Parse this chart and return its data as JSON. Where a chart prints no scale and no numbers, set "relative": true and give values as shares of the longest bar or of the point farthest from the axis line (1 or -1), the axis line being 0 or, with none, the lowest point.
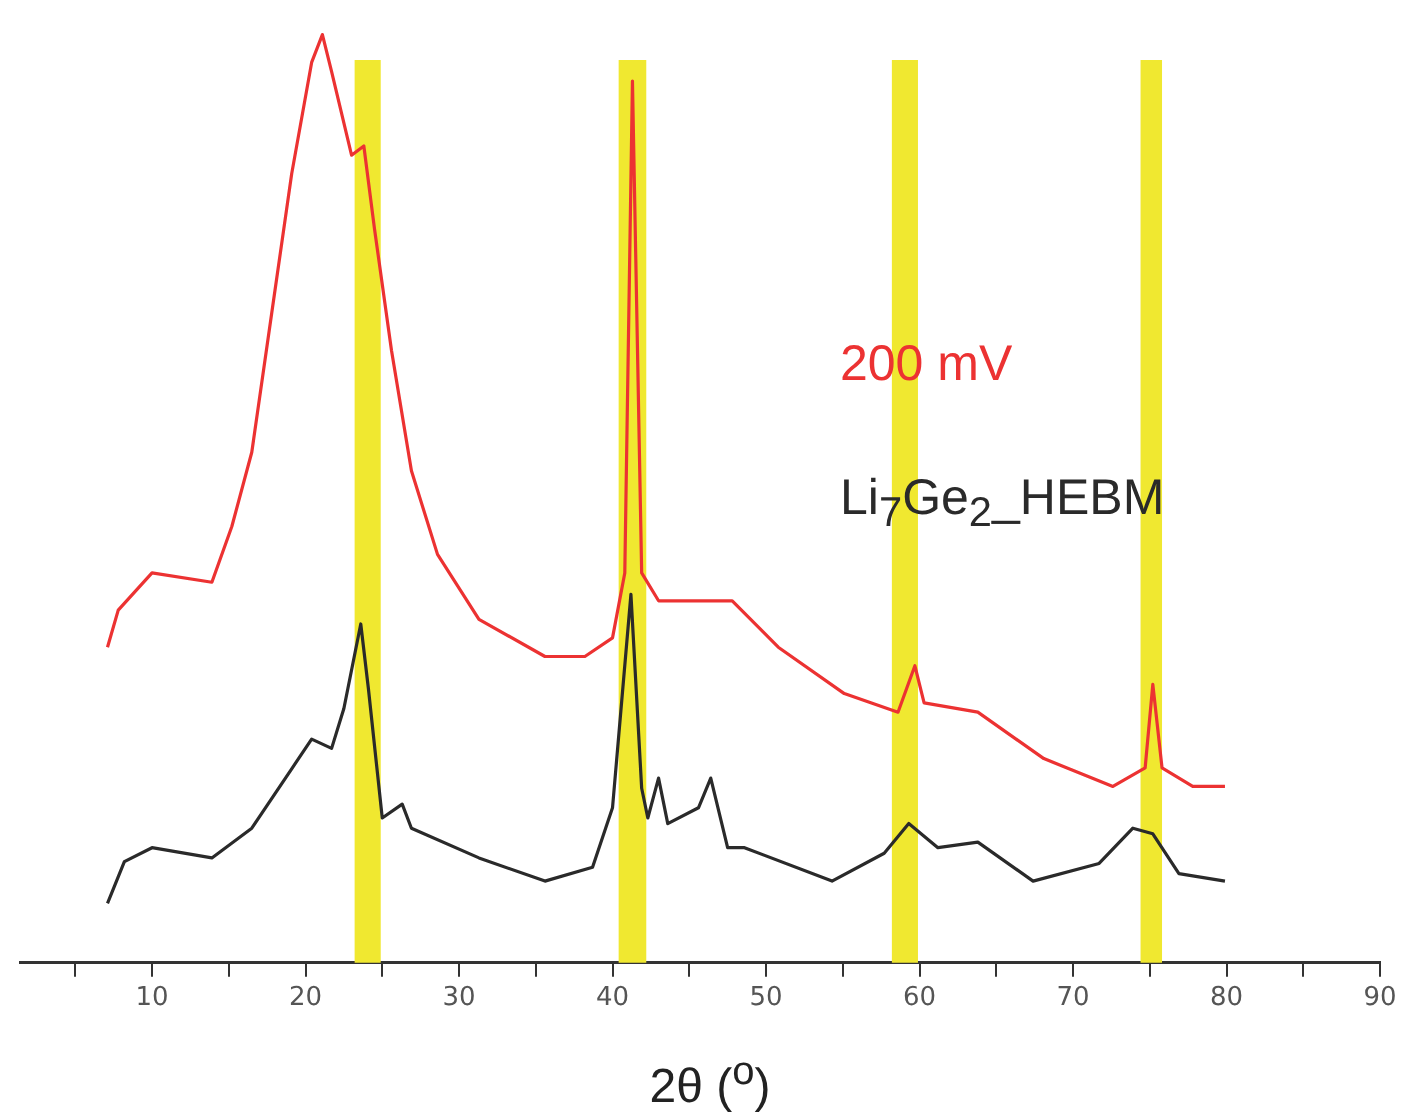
{
  "chart_data": {
    "type": "line",
    "relative": true,
    "xlabel": "2θ ($^{o}$)",
    "xlim": [
      1.4,
      90
    ],
    "xticks": [
      {
        "value": 5,
        "label": null
      },
      10,
      {
        "value": 15,
        "label": null
      },
      20,
      {
        "value": 25,
        "label": null
      },
      30,
      {
        "value": 35,
        "label": null
      },
      40,
      {
        "value": 45,
        "label": null
      },
      50,
      {
        "value": 55,
        "label": null
      },
      60,
      {
        "value": 65,
        "label": null
      },
      70,
      {
        "value": 75,
        "label": null
      },
      80,
      {
        "value": 85,
        "label": null
      },
      90
    ],
    "grid": false,
    "marker": "none",
    "line_style": "solid",
    "bands": [
      {
        "axis": "x",
        "from": 23.2,
        "to": 24.9,
        "color": "#f0e830"
      },
      {
        "axis": "x",
        "from": 40.4,
        "to": 42.2,
        "color": "#f0e830"
      },
      {
        "axis": "x",
        "from": 58.2,
        "to": 59.9,
        "color": "#f0e830"
      },
      {
        "axis": "x",
        "from": 74.4,
        "to": 75.8,
        "color": "#f0e830"
      }
    ],
    "series": [
      {
        "name": "200 mV",
        "color": "#ec3232",
        "x": [
          7.1,
          7.8,
          10,
          13.9,
          15.2,
          16.5,
          17.8,
          19.1,
          20.4,
          21.1,
          21.7,
          23.0,
          23.8,
          24.5,
          25.6,
          26.9,
          28.6,
          31.3,
          35.6,
          38.2,
          40,
          40.8,
          41.3,
          41.9,
          43,
          43.4,
          47.8,
          50.8,
          55.1,
          58.6,
          59.7,
          60.3,
          63.8,
          68.1,
          72.6,
          74.7,
          75.2,
          75.8,
          77.8,
          79.9
        ],
        "values": [
          0.34,
          0.38,
          0.42,
          0.41,
          0.47,
          0.55,
          0.7,
          0.85,
          0.97,
          1.0,
          0.96,
          0.87,
          0.88,
          0.79,
          0.66,
          0.53,
          0.44,
          0.37,
          0.33,
          0.33,
          0.35,
          0.42,
          0.95,
          0.42,
          0.39,
          0.39,
          0.39,
          0.34,
          0.29,
          0.27,
          0.32,
          0.28,
          0.27,
          0.22,
          0.19,
          0.21,
          0.3,
          0.21,
          0.19,
          0.19
        ]
      },
      {
        "name": "Li$_{7}$Ge$_{2}$_HEBM",
        "color": "#2a2a2a",
        "x": [
          7.1,
          8.2,
          10,
          13.9,
          16.5,
          19.1,
          20.4,
          21.7,
          22.5,
          23.6,
          24.1,
          25,
          26.3,
          26.9,
          31.3,
          35.6,
          38.7,
          40,
          41.2,
          41.9,
          42.3,
          43,
          43.6,
          45.6,
          46.4,
          47.5,
          48.6,
          54.3,
          57.7,
          59.3,
          61.2,
          63.8,
          67.4,
          71.7,
          73.9,
          75.2,
          76.9,
          79.9
        ],
        "values": [
          0.064,
          0.109,
          0.124,
          0.113,
          0.145,
          0.209,
          0.241,
          0.231,
          0.274,
          0.365,
          0.295,
          0.156,
          0.171,
          0.145,
          0.113,
          0.088,
          0.103,
          0.167,
          0.397,
          0.188,
          0.156,
          0.199,
          0.15,
          0.167,
          0.199,
          0.124,
          0.124,
          0.088,
          0.118,
          0.15,
          0.124,
          0.13,
          0.088,
          0.107,
          0.145,
          0.139,
          0.096,
          0.088
        ]
      }
    ]
  }
}
